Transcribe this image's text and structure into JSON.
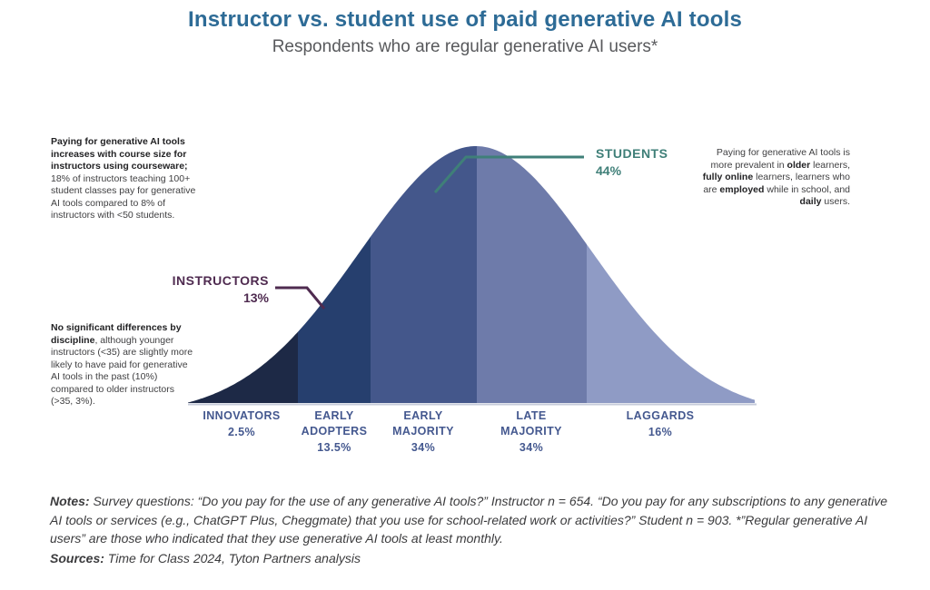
{
  "header": {
    "title": "Instructor vs. student use of paid generative AI tools",
    "subtitle": "Respondents who are regular generative AI users*",
    "title_color": "#2d6b96"
  },
  "chart_data": {
    "type": "area",
    "curve_shape": "bell (technology adoption curve)",
    "categories": [
      "INNOVATORS",
      "EARLY ADOPTERS",
      "EARLY MAJORITY",
      "LATE MAJORITY",
      "LAGGARDS"
    ],
    "values": [
      2.5,
      13.5,
      34,
      34,
      16
    ],
    "value_labels": [
      "2.5%",
      "13.5%",
      "34%",
      "34%",
      "16%"
    ],
    "labels_display": [
      "INNOVATORS",
      "EARLY\nADOPTERS",
      "EARLY\nMAJORITY",
      "LATE\nMAJORITY",
      "LAGGARDS"
    ],
    "segment_colors": [
      "#1d2946",
      "#263f6e",
      "#44578b",
      "#6e7baa",
      "#8f9bc5"
    ],
    "axis_label_color": "#44588f",
    "baseline_color": "#c6cbda",
    "grid": false,
    "legend": "none",
    "callouts": [
      {
        "label": "INSTRUCTORS",
        "value": "13%",
        "value_num": 13,
        "color": "#4f2b50"
      },
      {
        "label": "STUDENTS",
        "value": "44%",
        "value_num": 44,
        "color": "#3f7f78"
      }
    ]
  },
  "annotations": {
    "left_top": {
      "segments": [
        {
          "text": "Paying for generative AI tools increases with course size for instructors using courseware;",
          "bold": true
        },
        {
          "text": " 18% of instructors teaching 100+ student classes pay for generative AI tools compared to 8% of instructors with <50 students.",
          "bold": false
        }
      ]
    },
    "left_bottom": {
      "segments": [
        {
          "text": "No significant differences by discipline",
          "bold": true
        },
        {
          "text": ", although younger instructors (<35) are slightly more likely to have paid for generative AI tools in the past (10%) compared to older instructors (>35, 3%).",
          "bold": false
        }
      ]
    },
    "right": {
      "segments": [
        {
          "text": "Paying for generative AI tools is more prevalent in ",
          "bold": false
        },
        {
          "text": "older",
          "bold": true
        },
        {
          "text": " learners, ",
          "bold": false
        },
        {
          "text": "fully online",
          "bold": true
        },
        {
          "text": " learners, learners who are ",
          "bold": false
        },
        {
          "text": "employed",
          "bold": true
        },
        {
          "text": " while in school, and ",
          "bold": false
        },
        {
          "text": "daily",
          "bold": true
        },
        {
          "text": " users.",
          "bold": false
        }
      ]
    }
  },
  "footer": {
    "notes": {
      "segments": [
        {
          "text": "Notes:",
          "bold": true
        },
        {
          "text": " Survey questions: “Do you pay for the use of any generative AI tools?” Instructor n = 654. “Do you pay for any subscriptions to any generative AI tools or services (e.g., ChatGPT Plus, Cheggmate) that you use for school-related work or activities?” Student n = 903. *”Regular generative AI users” are those who indicated that they use generative AI tools at least monthly.",
          "bold": false
        }
      ]
    },
    "sources": {
      "segments": [
        {
          "text": "Sources:",
          "bold": true
        },
        {
          "text": " Time for Class 2024, Tyton Partners analysis",
          "bold": false
        }
      ]
    }
  }
}
